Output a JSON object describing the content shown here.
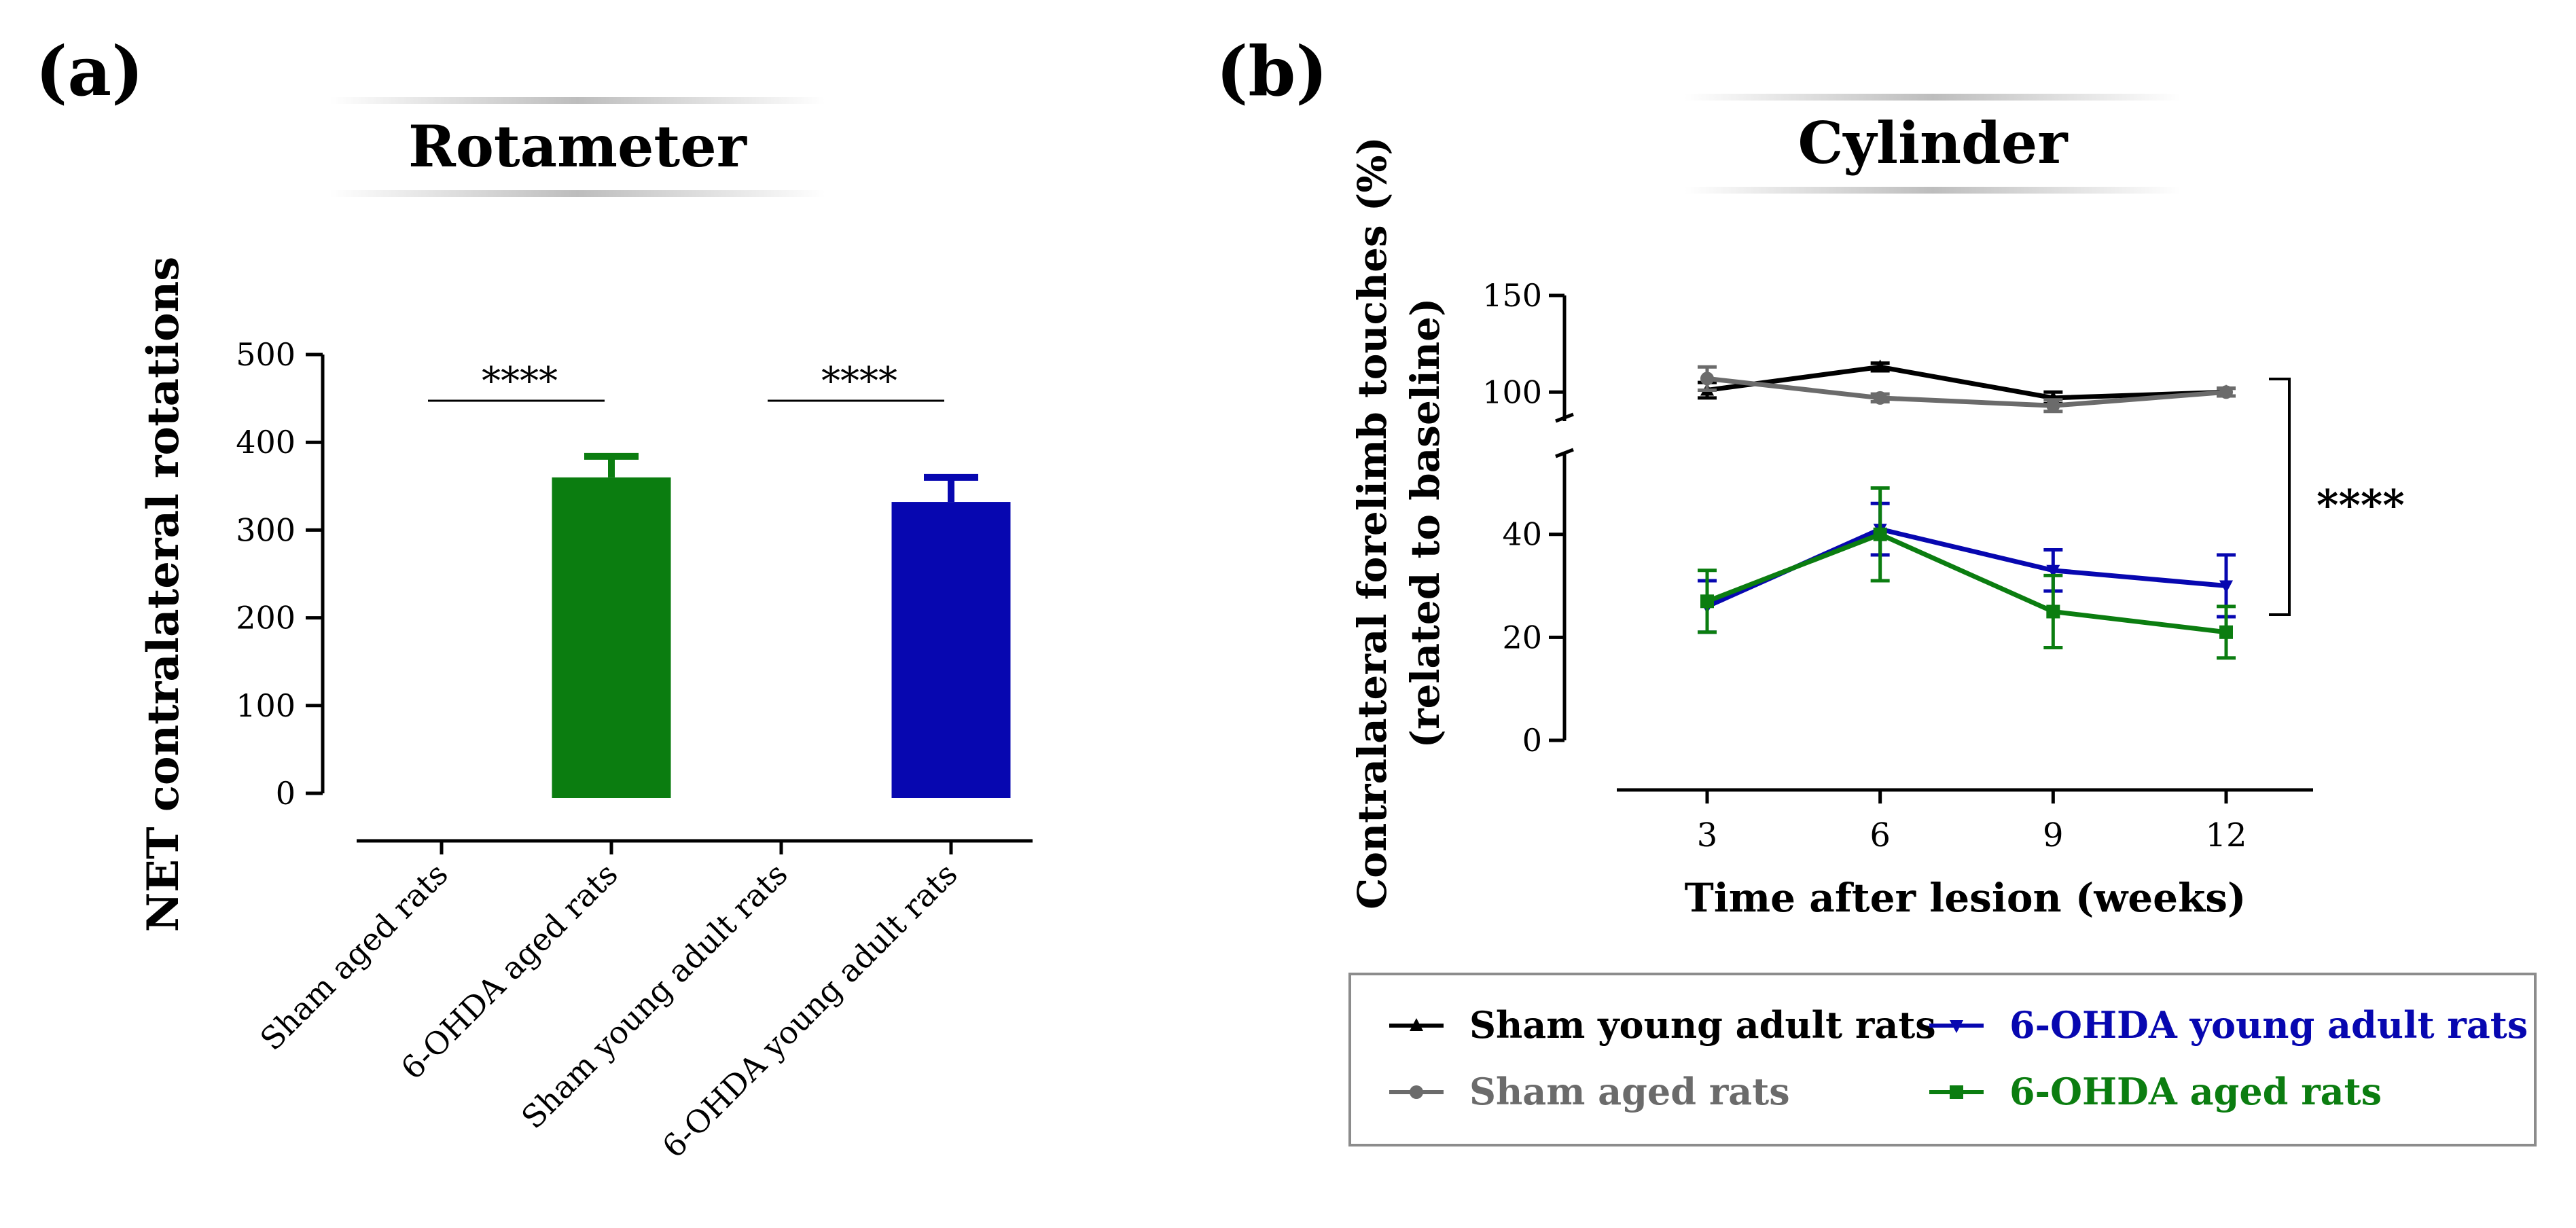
{
  "panels": {
    "a_label": "(a)",
    "b_label": "(b)"
  },
  "colors": {
    "black": "#000000",
    "gray": "#6b6b6b",
    "green": "#0b7d10",
    "blue": "#0707b0"
  },
  "chart_data": [
    {
      "type": "bar",
      "title": "Rotameter",
      "ylabel": "NET contralateral rotations",
      "xlabel": "",
      "ylim": [
        0,
        500
      ],
      "yticks": [
        0,
        100,
        200,
        300,
        400,
        500
      ],
      "categories": [
        "Sham aged rats",
        "6-OHDA aged rats",
        "Sham young adult rats",
        "6-OHDA young adult rats"
      ],
      "values": [
        0,
        360,
        0,
        332
      ],
      "errors": [
        0,
        24,
        0,
        28
      ],
      "bar_colors": [
        "#000000",
        "#0b7d10",
        "#000000",
        "#0707b0"
      ],
      "significance": [
        {
          "from": 0,
          "to": 1,
          "label": "****"
        },
        {
          "from": 2,
          "to": 3,
          "label": "****"
        }
      ]
    },
    {
      "type": "line",
      "title": "Cylinder",
      "ylabel_line1": "Contralateral  forelimb touches (%)",
      "ylabel_line2": "(related to baseline)",
      "xlabel": "Time after lesion (weeks)",
      "x": [
        3,
        6,
        9,
        12
      ],
      "yticks_lower": [
        0,
        20,
        40
      ],
      "yticks_upper": [
        100,
        150
      ],
      "ylim_lower": [
        0,
        55
      ],
      "ylim_upper": [
        85,
        150
      ],
      "axis_break": true,
      "series": [
        {
          "name": "Sham young adult rats",
          "values": [
            101,
            113,
            97,
            100
          ],
          "errors": [
            4,
            2,
            3,
            2
          ],
          "color": "#000000",
          "marker": "triangle"
        },
        {
          "name": "Sham aged rats",
          "values": [
            107,
            97,
            93,
            100
          ],
          "errors": [
            6,
            2,
            3,
            2
          ],
          "color": "#6b6b6b",
          "marker": "circle"
        },
        {
          "name": "6-OHDA young adult rats",
          "values": [
            26,
            41,
            33,
            30
          ],
          "errors": [
            5,
            5,
            4,
            6
          ],
          "color": "#0707b0",
          "marker": "triangle-down"
        },
        {
          "name": "6-OHDA aged rats",
          "values": [
            27,
            40,
            25,
            21
          ],
          "errors": [
            6,
            9,
            7,
            5
          ],
          "color": "#0b7d10",
          "marker": "square"
        }
      ],
      "significance": {
        "label": "****"
      },
      "legend_position": "bottom"
    }
  ]
}
